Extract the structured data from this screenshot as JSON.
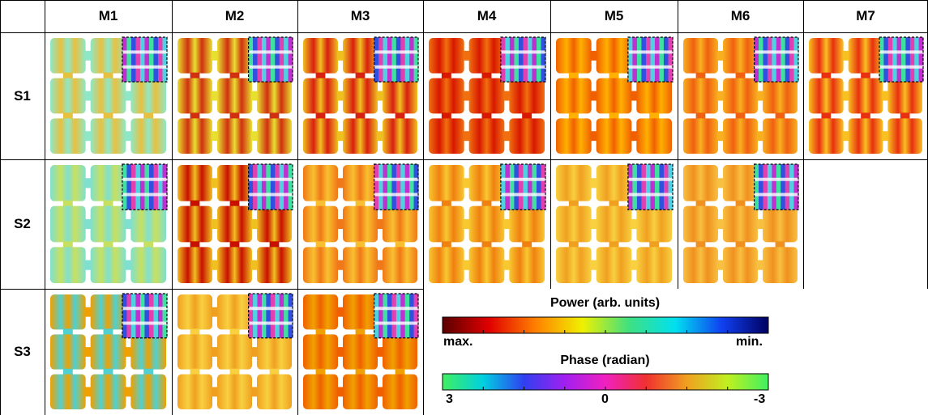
{
  "columns": [
    "M1",
    "M2",
    "M3",
    "M4",
    "M5",
    "M6",
    "M7"
  ],
  "rows": [
    "S1",
    "S2",
    "S3"
  ],
  "legend": {
    "power": {
      "title": "Power (arb. units)",
      "left": "max.",
      "right": "min."
    },
    "phase": {
      "title": "Phase (radian)",
      "ticks": [
        3,
        0,
        -3
      ]
    }
  }
}
